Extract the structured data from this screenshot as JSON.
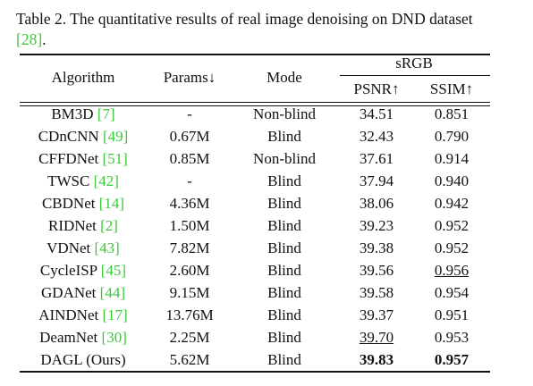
{
  "caption": {
    "text": "Table 2. The quantitative results of real image denoising on DND dataset",
    "ref": "[28]",
    "end": "."
  },
  "table": {
    "header": {
      "algorithm": "Algorithm",
      "params": "Params↓",
      "mode": "Mode",
      "group": "sRGB",
      "psnr": "PSNR↑",
      "ssim": "SSIM↑"
    },
    "rows": [
      {
        "name": "BM3D",
        "ref": "[7]",
        "params": "-",
        "mode": "Non-blind",
        "psnr": "34.51",
        "ssim": "0.851"
      },
      {
        "name": "CDnCNN",
        "ref": "[49]",
        "params": "0.67M",
        "mode": "Blind",
        "psnr": "32.43",
        "ssim": "0.790"
      },
      {
        "name": "CFFDNet",
        "ref": "[51]",
        "params": "0.85M",
        "mode": "Non-blind",
        "psnr": "37.61",
        "ssim": "0.914"
      },
      {
        "name": "TWSC",
        "ref": "[42]",
        "params": "-",
        "mode": "Blind",
        "psnr": "37.94",
        "ssim": "0.940"
      },
      {
        "name": "CBDNet",
        "ref": "[14]",
        "params": "4.36M",
        "mode": "Blind",
        "psnr": "38.06",
        "ssim": "0.942"
      },
      {
        "name": "RIDNet",
        "ref": "[2]",
        "params": "1.50M",
        "mode": "Blind",
        "psnr": "39.23",
        "ssim": "0.952"
      },
      {
        "name": "VDNet",
        "ref": "[43]",
        "params": "7.82M",
        "mode": "Blind",
        "psnr": "39.38",
        "ssim": "0.952"
      },
      {
        "name": "CycleISP",
        "ref": "[45]",
        "params": "2.60M",
        "mode": "Blind",
        "psnr": "39.56",
        "ssim": "0.956",
        "underline": [
          "ssim"
        ]
      },
      {
        "name": "GDANet",
        "ref": "[44]",
        "params": "9.15M",
        "mode": "Blind",
        "psnr": "39.58",
        "ssim": "0.954"
      },
      {
        "name": "AINDNet",
        "ref": "[17]",
        "params": "13.76M",
        "mode": "Blind",
        "psnr": "39.37",
        "ssim": "0.951"
      },
      {
        "name": "DeamNet",
        "ref": "[30]",
        "params": "2.25M",
        "mode": "Blind",
        "psnr": "39.70",
        "ssim": "0.953",
        "underline": [
          "psnr"
        ]
      },
      {
        "name": "DAGL (Ours)",
        "params": "5.62M",
        "mode": "Blind",
        "psnr": "39.83",
        "ssim": "0.957",
        "bold": [
          "psnr",
          "ssim"
        ]
      }
    ]
  }
}
